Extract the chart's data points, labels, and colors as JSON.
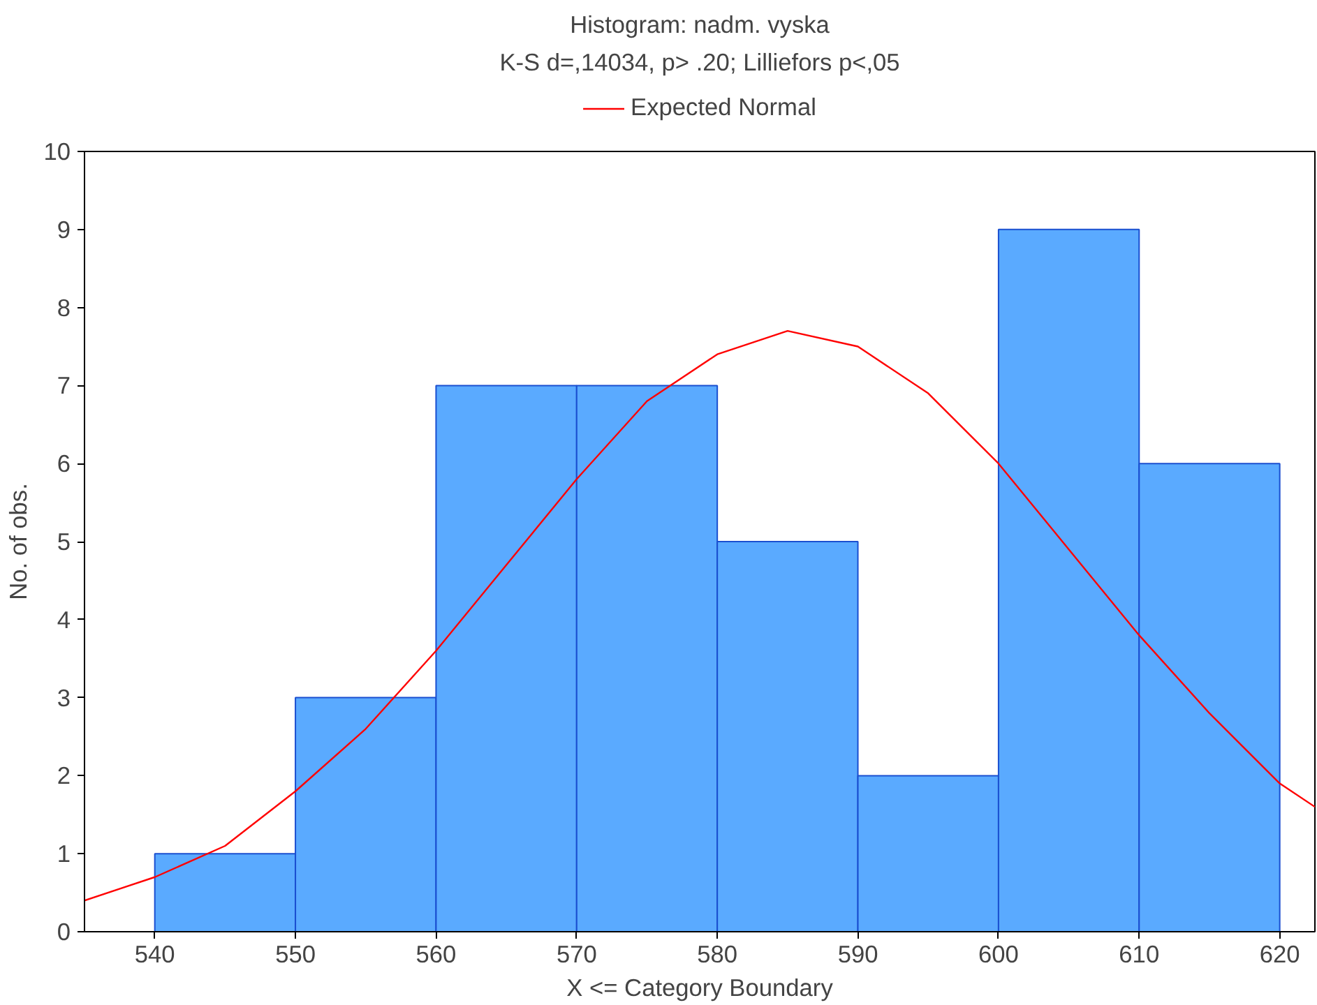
{
  "chart_data": {
    "type": "histogram",
    "title": "Histogram: nadm. vyska",
    "subtitle": "K-S d=,14034, p> .20; Lilliefors p<,05",
    "xlabel": "X <= Category Boundary",
    "ylabel": "No. of obs.",
    "bins": [
      540,
      550,
      560,
      570,
      580,
      590,
      600,
      610,
      620
    ],
    "values": [
      1,
      3,
      7,
      7,
      5,
      2,
      9,
      6
    ],
    "color": "#5aaaff",
    "series": [
      {
        "type": "line",
        "name": "Expected Normal",
        "color": "#ff0000",
        "x": [
          535,
          540,
          545,
          550,
          555,
          560,
          565,
          570,
          575,
          580,
          585,
          590,
          595,
          600,
          605,
          610,
          615,
          620,
          622.5
        ],
        "values": [
          0.4,
          0.7,
          1.1,
          1.8,
          2.6,
          3.6,
          4.7,
          5.8,
          6.8,
          7.4,
          7.7,
          7.5,
          6.9,
          6.0,
          4.9,
          3.8,
          2.8,
          1.9,
          1.6
        ]
      }
    ],
    "xlim": [
      535,
      622.5
    ],
    "ylim": [
      0,
      10
    ],
    "xticks": [
      540,
      550,
      560,
      570,
      580,
      590,
      600,
      610,
      620
    ],
    "yticks": [
      0,
      1,
      2,
      3,
      4,
      5,
      6,
      7,
      8,
      9,
      10
    ],
    "grid": false,
    "legend": "top"
  }
}
